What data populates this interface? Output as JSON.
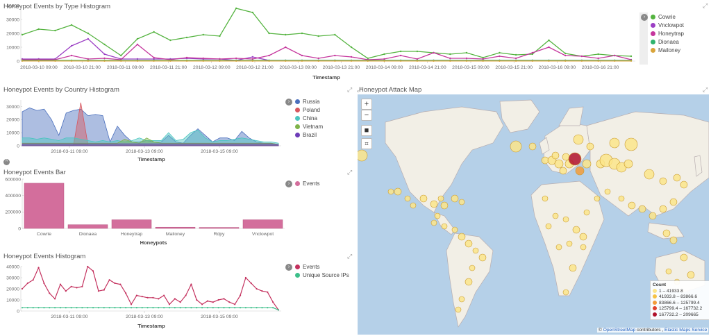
{
  "panel_type": {
    "title": "Honeypot Events by Type Histogram",
    "xlabel": "Timestamp",
    "yticks": [
      "40000",
      "30000",
      "20000",
      "10000",
      "0"
    ],
    "xticks": [
      "2018-03-10 09:00",
      "2018-03-10 21:00",
      "2018-03-11 09:00",
      "2018-03-11 21:00",
      "2018-03-12 09:00",
      "2018-03-12 21:00",
      "2018-03-13 09:00",
      "2018-03-13 21:00",
      "2018-03-14 09:00",
      "2018-03-14 21:00",
      "2018-03-15 09:00",
      "2018-03-15 21:00",
      "2018-03-16 09:00",
      "2018-03-16 21:00"
    ]
  },
  "panel_country": {
    "title": "Honeypot Events by Country Histogram",
    "xlabel": "Timestamp",
    "yticks": [
      "30000",
      "20000",
      "10000",
      "0"
    ],
    "xticks": [
      "2018-03-11 09:00",
      "2018-03-13 09:00",
      "2018-03-15 09:00"
    ]
  },
  "panel_bar": {
    "title": "Honeypot Events Bar",
    "xlabel": "Honeypots",
    "yticks": [
      "600000",
      "400000",
      "200000",
      "0"
    ]
  },
  "panel_hist": {
    "title": "Honeypot Events Histogram",
    "xlabel": "Timestamp",
    "yticks": [
      "40000",
      "30000",
      "20000",
      "10000",
      "0"
    ],
    "xticks": [
      "2018-03-11 09:00",
      "2018-03-13 09:00",
      "2018-03-15 09:00"
    ]
  },
  "panel_map": {
    "title": "Honeypot Attack Map",
    "zoom_in": "+",
    "zoom_out": "−",
    "legend_title": "Count",
    "ranges": [
      {
        "label": "1 – 41933.8",
        "color": "#fbe58a"
      },
      {
        "label": "41933.8 – 83866.6",
        "color": "#f6c244"
      },
      {
        "label": "83866.6 – 125799.4",
        "color": "#f39c39"
      },
      {
        "label": "125799.4 – 167732.2",
        "color": "#e0422d"
      },
      {
        "label": "167732.2 – 209665",
        "color": "#b0112a"
      }
    ],
    "attribution_prefix": "© ",
    "attribution_osm": "OpenStreetMap",
    "attribution_mid": " contributors , ",
    "attribution_ems": "Elastic Maps Service"
  },
  "chart_data": [
    {
      "type": "line",
      "title": "Honeypot Events by Type Histogram",
      "xlabel": "Timestamp",
      "ylabel": "",
      "ylim": [
        0,
        40000
      ],
      "x_count": 38,
      "series": [
        {
          "name": "Cowrie",
          "color": "#54b33f",
          "values": [
            19000,
            23000,
            22000,
            26000,
            20000,
            12000,
            4000,
            16000,
            21000,
            15000,
            17000,
            19000,
            18000,
            38000,
            35000,
            20000,
            19000,
            20000,
            18000,
            19000,
            10000,
            2000,
            5000,
            7000,
            7000,
            6000,
            5000,
            6000,
            2500,
            6000,
            4500,
            5000,
            15000,
            5500,
            3500,
            5000,
            4000,
            3500
          ]
        },
        {
          "name": "Vnclowpot",
          "color": "#9b3fc4",
          "values": [
            1500,
            1500,
            1500,
            11000,
            16000,
            5000,
            1500,
            1500,
            1500,
            1500,
            2000,
            1500,
            1500,
            500,
            3000,
            500,
            500,
            500,
            500,
            500,
            500,
            500,
            500,
            500,
            500,
            500,
            500,
            500,
            500,
            500,
            500,
            500,
            500,
            500,
            500,
            500,
            500,
            500
          ]
        },
        {
          "name": "Honeytrap",
          "color": "#c5369d",
          "values": [
            1000,
            1000,
            1000,
            4000,
            1500,
            2000,
            1000,
            12000,
            2500,
            1000,
            2500,
            2000,
            1500,
            2000,
            1500,
            4000,
            10000,
            4000,
            2000,
            4000,
            3000,
            1000,
            1500,
            4000,
            1500,
            6000,
            2000,
            2000,
            1500,
            3500,
            2000,
            6000,
            10000,
            4000,
            3500,
            2000,
            4000,
            1000
          ]
        },
        {
          "name": "Dionaea",
          "color": "#2fb36e",
          "values": [
            500,
            500,
            500,
            500,
            500,
            500,
            500,
            500,
            500,
            500,
            500,
            500,
            500,
            500,
            500,
            500,
            500,
            500,
            500,
            500,
            500,
            500,
            500,
            500,
            500,
            500,
            500,
            500,
            500,
            500,
            500,
            500,
            500,
            500,
            500,
            500,
            500,
            500
          ]
        },
        {
          "name": "Mailoney",
          "color": "#d9a43a",
          "values": [
            100,
            100,
            100,
            100,
            100,
            100,
            100,
            100,
            100,
            100,
            100,
            100,
            100,
            100,
            100,
            100,
            100,
            100,
            100,
            100,
            100,
            100,
            100,
            100,
            100,
            100,
            100,
            100,
            100,
            100,
            100,
            100,
            100,
            100,
            100,
            100,
            100,
            100
          ]
        }
      ]
    },
    {
      "type": "area",
      "title": "Honeypot Events by Country Histogram",
      "xlabel": "Timestamp",
      "ylim": [
        0,
        35000
      ],
      "x_count": 36,
      "series": [
        {
          "name": "Russia",
          "color": "#4a6fbd",
          "values": [
            26000,
            29000,
            27000,
            28000,
            20000,
            8000,
            25000,
            27000,
            28000,
            23000,
            24000,
            23000,
            3000,
            15000,
            8000,
            3000,
            3000,
            4000,
            3000,
            3000,
            8000,
            3000,
            2000,
            8000,
            13000,
            8000,
            3000,
            6000,
            6000,
            4000,
            11000,
            6000,
            3000,
            2000,
            2000,
            1000
          ]
        },
        {
          "name": "Poland",
          "color": "#d8565e",
          "values": [
            300,
            300,
            300,
            300,
            300,
            300,
            300,
            300,
            33000,
            300,
            300,
            300,
            300,
            300,
            300,
            300,
            300,
            300,
            300,
            300,
            300,
            300,
            300,
            300,
            300,
            300,
            300,
            300,
            300,
            300,
            300,
            300,
            300,
            300,
            300,
            300
          ]
        },
        {
          "name": "China",
          "color": "#4bc5c0",
          "values": [
            6000,
            6000,
            5000,
            6000,
            5000,
            4000,
            6000,
            6000,
            5000,
            4000,
            3000,
            4000,
            3000,
            4000,
            3000,
            4000,
            6000,
            4000,
            4000,
            4000,
            10000,
            4000,
            5000,
            10000,
            12000,
            6000,
            3000,
            4000,
            4000,
            5000,
            6000,
            5000,
            4000,
            3000,
            3000,
            2000
          ]
        },
        {
          "name": "Vietnam",
          "color": "#7fb34a",
          "values": [
            2000,
            2000,
            2000,
            2000,
            2000,
            2000,
            2000,
            2000,
            2000,
            2000,
            2000,
            2000,
            2000,
            2000,
            5000,
            3000,
            2000,
            6000,
            3000,
            2000,
            2000,
            2000,
            2000,
            2000,
            2000,
            2000,
            2000,
            2000,
            2000,
            2000,
            2000,
            2000,
            2000,
            2000,
            2000,
            1000
          ]
        },
        {
          "name": "Brazil",
          "color": "#6d3cb8",
          "values": [
            1500,
            1500,
            1500,
            1500,
            1500,
            1500,
            1500,
            1500,
            1500,
            1500,
            1500,
            1500,
            1500,
            1500,
            1500,
            1500,
            1500,
            1500,
            1500,
            1500,
            1500,
            1500,
            1500,
            1500,
            1500,
            1500,
            1500,
            1500,
            1500,
            1500,
            1500,
            1500,
            1500,
            1500,
            1500,
            800
          ]
        }
      ]
    },
    {
      "type": "bar",
      "title": "Honeypot Events Bar",
      "xlabel": "Honeypots",
      "ylim": [
        0,
        600000
      ],
      "categories": [
        "Cowrie",
        "Dionaea",
        "Honeytrap",
        "Mailoney",
        "Rdpy",
        "Vnclowpot"
      ],
      "series": [
        {
          "name": "Events",
          "color": "#d36e9c",
          "values": [
            550000,
            45000,
            105000,
            15000,
            12000,
            105000
          ]
        }
      ]
    },
    {
      "type": "line",
      "title": "Honeypot Events Histogram",
      "xlabel": "Timestamp",
      "ylim": [
        0,
        40000
      ],
      "x_count": 48,
      "series": [
        {
          "name": "Events",
          "color": "#c4315e",
          "values": [
            20000,
            25000,
            28000,
            39000,
            25000,
            16000,
            11000,
            24000,
            18000,
            22000,
            21000,
            22000,
            40000,
            36000,
            18000,
            19000,
            28000,
            25000,
            24000,
            16000,
            6000,
            14000,
            13000,
            12000,
            12000,
            11000,
            14000,
            6000,
            11000,
            8000,
            14000,
            24000,
            10000,
            6000,
            9000,
            8000,
            10000,
            11000,
            8000,
            6000,
            14000,
            30000,
            25000,
            20000,
            18000,
            17000,
            8000,
            1000
          ]
        },
        {
          "name": "Unique Source IPs",
          "color": "#3dbf8a",
          "values": [
            3000,
            3000,
            3000,
            3000,
            3000,
            3000,
            3000,
            3000,
            3000,
            3000,
            3000,
            3000,
            3000,
            3000,
            3000,
            3000,
            3000,
            3000,
            3000,
            3000,
            3000,
            3000,
            3000,
            3000,
            3000,
            3000,
            3000,
            3000,
            3000,
            3000,
            3000,
            3000,
            3000,
            3000,
            3000,
            3000,
            3000,
            3000,
            3000,
            3000,
            3000,
            3000,
            3000,
            3000,
            3000,
            3000,
            3000,
            1000
          ]
        }
      ]
    }
  ]
}
